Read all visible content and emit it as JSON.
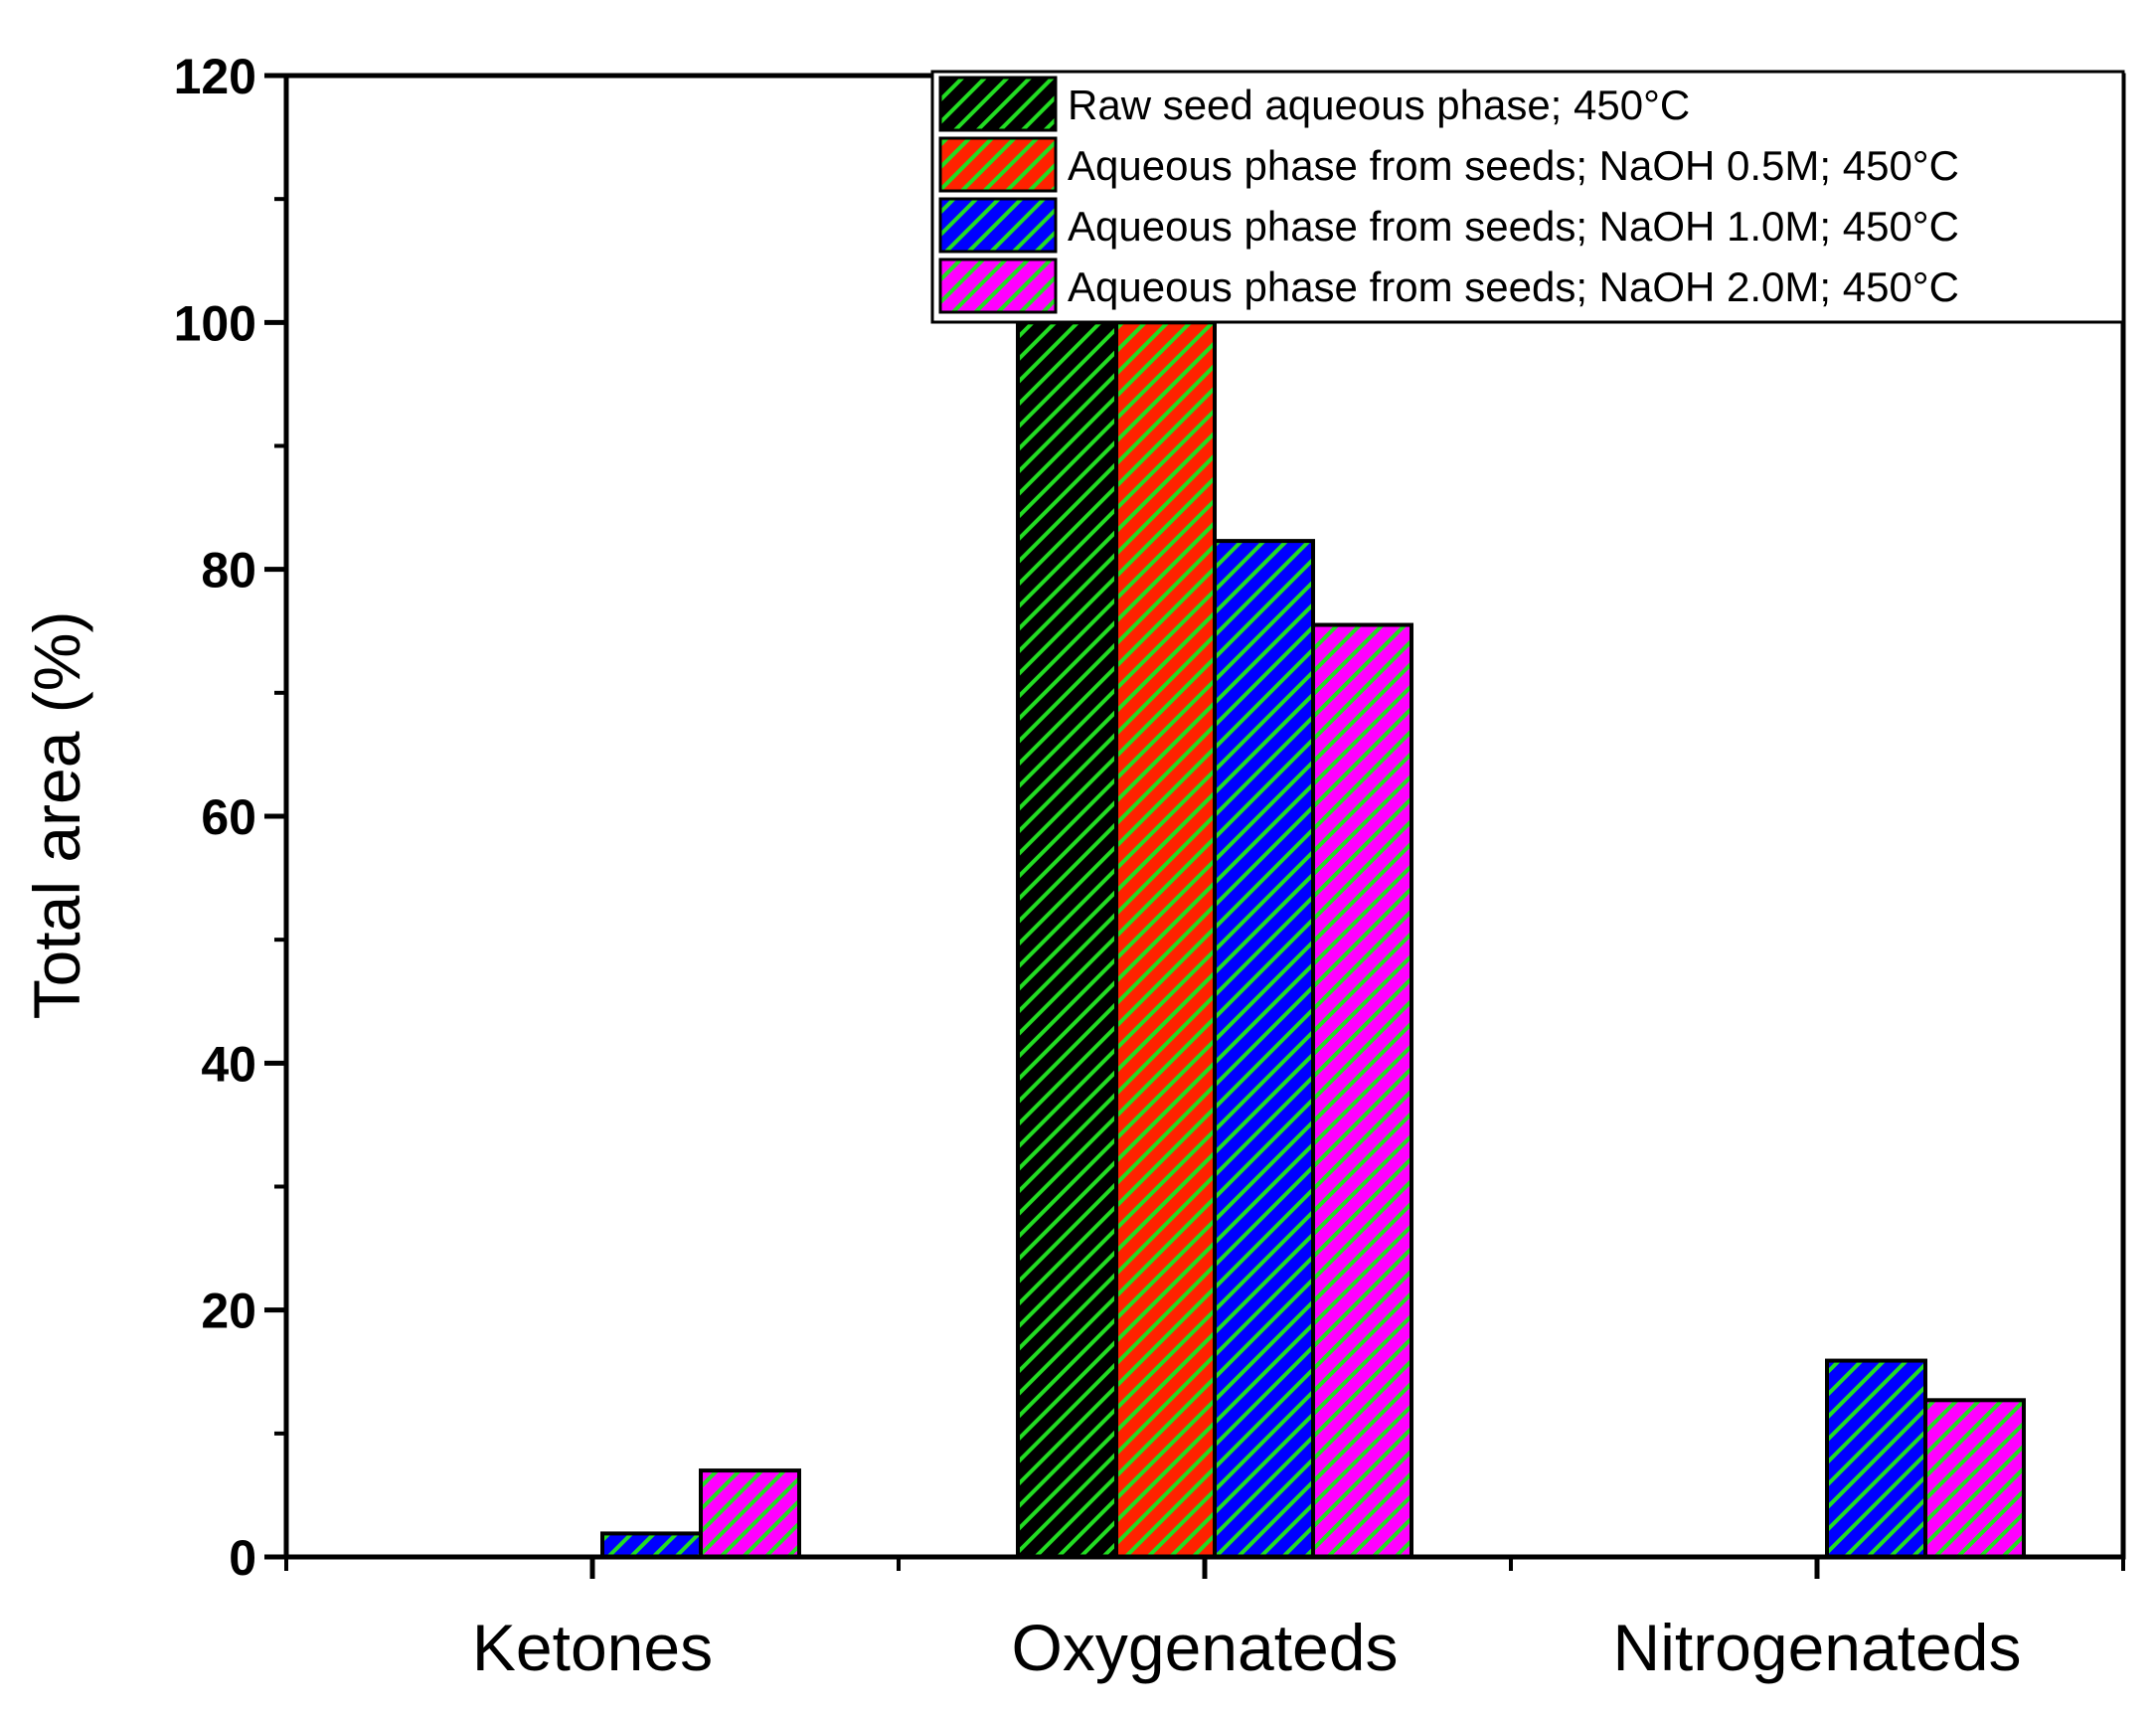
{
  "chart_data": {
    "type": "bar",
    "title": "",
    "xlabel": "",
    "ylabel": "Total area (%)",
    "ylim": [
      0,
      120
    ],
    "yticks": [
      0,
      20,
      40,
      60,
      80,
      100,
      120
    ],
    "categories": [
      "Ketones",
      "Oxygenateds",
      "Nitrogenateds"
    ],
    "series": [
      {
        "name": "Raw seed aqueous phase; 450°C",
        "color": "#000000",
        "hatch": "#22dd22",
        "values": [
          0,
          100,
          0
        ]
      },
      {
        "name": "Aqueous phase from seeds; NaOH 0.5M; 450°C",
        "color": "#ff2200",
        "hatch": "#22dd22",
        "values": [
          0,
          100,
          0
        ]
      },
      {
        "name": "Aqueous phase from seeds; NaOH 1.0M; 450°C",
        "color": "#0000ff",
        "hatch": "#22dd22",
        "values": [
          1.9,
          82.3,
          15.9
        ]
      },
      {
        "name": "Aqueous phase from seeds; NaOH 2.0M; 450°C",
        "color": "#ff00ff",
        "hatch": "#22dd22",
        "values": [
          7.0,
          75.5,
          12.7
        ]
      }
    ],
    "legend_position": "top-right"
  }
}
